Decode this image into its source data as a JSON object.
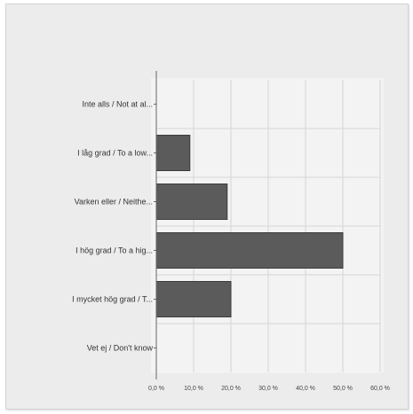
{
  "chart_data": {
    "type": "bar",
    "orientation": "horizontal",
    "categories": [
      "Inte alls / Not at al...",
      "I låg grad / To a low...",
      "Varken eller / Neithe...",
      "I hög grad / To a hig...",
      "I mycket hög grad / T...",
      "Vet ej / Don't know"
    ],
    "values": [
      0,
      9,
      19,
      50,
      20,
      0
    ],
    "x_ticks": [
      "0,0 %",
      "10,0 %",
      "20,0 %",
      "30,0 %",
      "40,0 %",
      "50,0 %",
      "60,0 %"
    ],
    "xlim": [
      0,
      60
    ],
    "grid": true,
    "title": "",
    "xlabel": "",
    "ylabel": "",
    "colors": {
      "bar": "#5b5b5b",
      "bar_edge": "#3c3c3c",
      "grid": "#d6d6d6",
      "axis": "#666666"
    }
  }
}
